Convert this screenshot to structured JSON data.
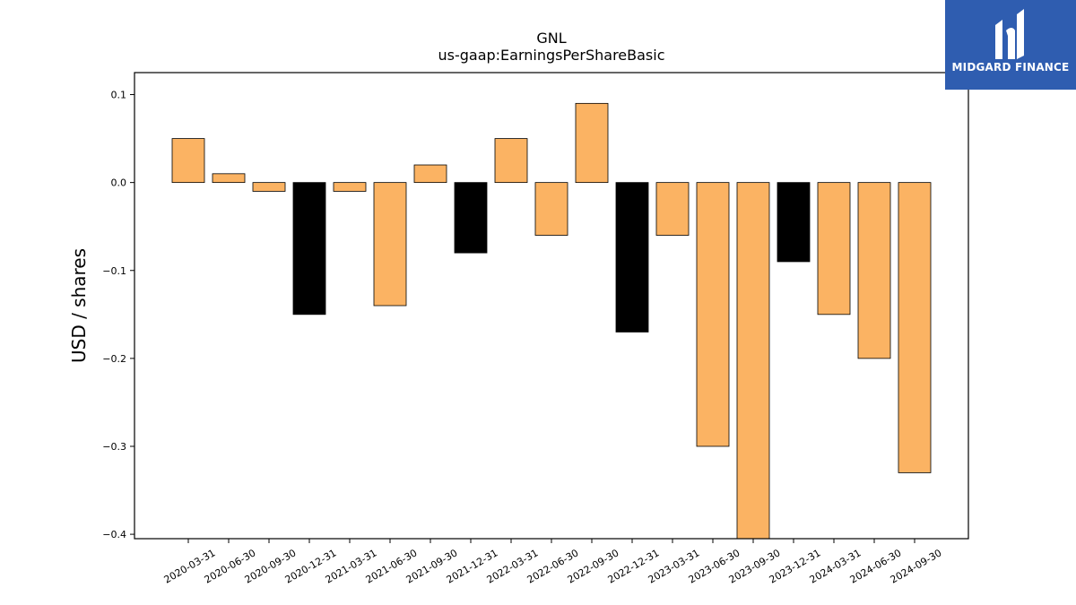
{
  "chart_data": {
    "type": "bar",
    "title": "GNL",
    "subtitle": "us-gaap:EarningsPerShareBasic",
    "xlabel": "",
    "ylabel": "USD / shares",
    "ylim": [
      -0.405,
      0.125
    ],
    "yticks": [
      0.1,
      0.0,
      -0.1,
      -0.2,
      -0.3,
      -0.4
    ],
    "ytick_labels": [
      "0.1",
      "0.0",
      "−0.1",
      "−0.2",
      "−0.3",
      "−0.4"
    ],
    "grid": false,
    "categories": [
      "2020-03-31",
      "2020-06-30",
      "2020-09-30",
      "2020-12-31",
      "2021-03-31",
      "2021-06-30",
      "2021-09-30",
      "2021-12-31",
      "2022-03-31",
      "2022-06-30",
      "2022-09-30",
      "2022-12-31",
      "2023-03-31",
      "2023-06-30",
      "2023-09-30",
      "2023-12-31",
      "2024-03-31",
      "2024-06-30",
      "2024-09-30"
    ],
    "values": [
      0.05,
      0.01,
      -0.01,
      -0.15,
      -0.01,
      -0.14,
      0.02,
      -0.08,
      0.05,
      -0.06,
      0.09,
      -0.17,
      -0.06,
      -0.3,
      -0.41,
      -0.09,
      -0.15,
      -0.2,
      -0.33
    ],
    "bar_colors": [
      "#fbb363",
      "#fbb363",
      "#fbb363",
      "#000000",
      "#fbb363",
      "#fbb363",
      "#fbb363",
      "#000000",
      "#fbb363",
      "#fbb363",
      "#fbb363",
      "#000000",
      "#fbb363",
      "#fbb363",
      "#fbb363",
      "#000000",
      "#fbb363",
      "#fbb363",
      "#fbb363"
    ]
  },
  "logo": {
    "text": "MIDGARD FINANCE",
    "background": "#2f5db0"
  }
}
